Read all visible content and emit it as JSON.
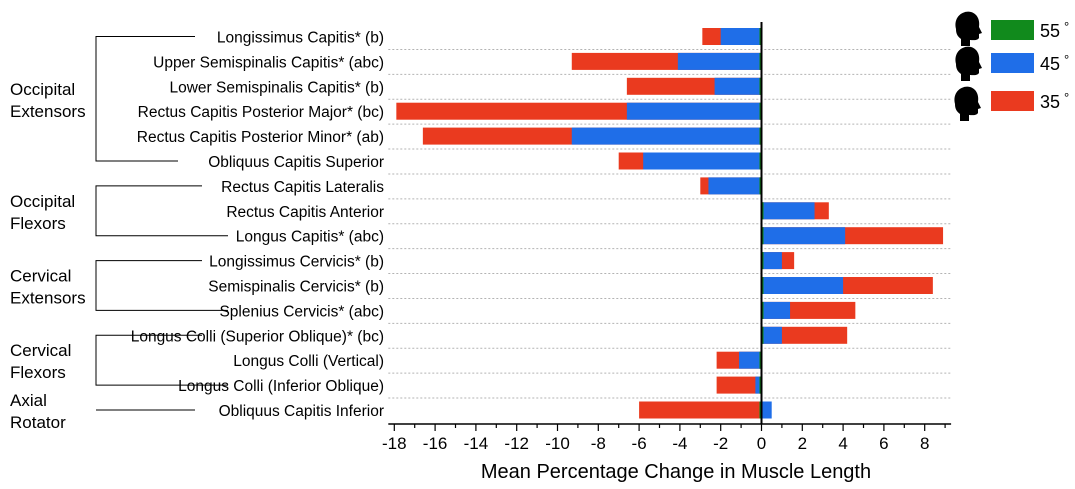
{
  "chart_data": {
    "type": "bar",
    "xlabel": "Mean Percentage Change in Muscle Length",
    "xlim": [
      -18,
      9
    ],
    "x_ticks": [
      "-18",
      "-16",
      "-14",
      "-12",
      "-10",
      "-8",
      "-6",
      "-4",
      "-2",
      "0",
      "2",
      "4",
      "6",
      "8"
    ],
    "x_tick_values": [
      -18,
      -16,
      -14,
      -12,
      -10,
      -8,
      -6,
      -4,
      -2,
      0,
      2,
      4,
      6,
      8
    ],
    "grid": "horizontal dotted",
    "categories": [
      "Longissimus Capitis* (b)",
      "Upper Semispinalis Capitis* (abc)",
      "Lower Semispinalis Capitis* (b)",
      "Rectus Capitis Posterior Major* (bc)",
      "Rectus Capitis Posterior Minor* (ab)",
      "Obliquus Capitis Superior",
      "Rectus Capitis Lateralis",
      "Rectus Capitis Anterior",
      "Longus Capitis* (abc)",
      "Longissimus Cervicis* (b)",
      "Semispinalis Cervicis* (b)",
      "Splenius Cervicis* (abc)",
      "Longus Colli (Superior Oblique)* (bc)",
      "Longus Colli (Vertical)",
      "Longus Colli (Inferior Oblique)",
      "Obliquus Capitis Inferior"
    ],
    "groups": [
      {
        "label": [
          "Occipital",
          "Extensors"
        ],
        "first": 0,
        "last": 5
      },
      {
        "label": [
          "Occipital",
          "Flexors"
        ],
        "first": 6,
        "last": 8
      },
      {
        "label": [
          "Cervical",
          "Extensors"
        ],
        "first": 9,
        "last": 11
      },
      {
        "label": [
          "Cervical",
          "Flexors"
        ],
        "first": 12,
        "last": 14
      },
      {
        "label": [
          "Axial",
          "Rotator"
        ],
        "first": 15,
        "last": 15
      }
    ],
    "series": [
      {
        "name": "35°",
        "color": "#ea3a1f",
        "values": [
          -2.9,
          -9.3,
          -6.6,
          -17.9,
          -16.6,
          -7.0,
          -3.0,
          3.3,
          8.9,
          1.6,
          8.4,
          4.6,
          4.2,
          -2.2,
          -2.2,
          -6.0
        ]
      },
      {
        "name": "45°",
        "color": "#1f6ee8",
        "values": [
          -2.0,
          -4.1,
          -2.3,
          -6.6,
          -9.3,
          -5.8,
          -2.6,
          2.6,
          4.1,
          1.0,
          4.0,
          1.4,
          1.0,
          -1.1,
          -0.3,
          0.5
        ]
      },
      {
        "name": "55°",
        "color": "#118a1c",
        "values": [
          -0.1,
          -0.1,
          -0.1,
          -0.1,
          -0.1,
          -0.1,
          -0.1,
          0.1,
          0.1,
          0.1,
          0.1,
          0.1,
          0.1,
          -0.1,
          -0.1,
          -0.1
        ]
      }
    ],
    "legend": {
      "placement": "top-right",
      "entries": [
        {
          "label": "55",
          "degree": "°",
          "color": "#118a1c",
          "icon": "head-silhouette-icon"
        },
        {
          "label": "45",
          "degree": "°",
          "color": "#1f6ee8",
          "icon": "head-silhouette-icon"
        },
        {
          "label": "35",
          "degree": "°",
          "color": "#ea3a1f",
          "icon": "head-silhouette-icon"
        }
      ]
    }
  }
}
